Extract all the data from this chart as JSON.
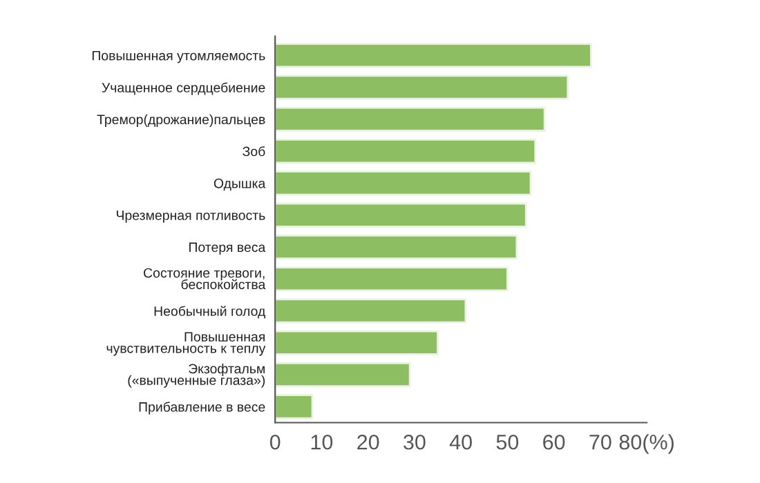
{
  "chart_data": {
    "type": "bar",
    "orientation": "horizontal",
    "categories": [
      "Повышенная утомляемость",
      "Учащенное сердцебиение",
      "Тремор(дрожание)пальцев",
      "Зоб",
      "Одышка",
      "Чрезмерная потливость",
      "Потеря веса",
      "Состояние тревоги,\nбеспокойства",
      "Необычный голод",
      "Повышенная\nчувствительность к теплу",
      "Экзофтальм\n(«выпученные глаза»)",
      "Прибавление в весе"
    ],
    "values": [
      68,
      63,
      58,
      56,
      55,
      54,
      52,
      50,
      41,
      35,
      29,
      8
    ],
    "color": "#8dbf62",
    "xlim": [
      0,
      80
    ],
    "xticks": [
      0,
      10,
      20,
      30,
      40,
      50,
      60,
      70,
      {
        "value": 80,
        "label": "80(%)"
      }
    ],
    "grid": false,
    "legend": false
  }
}
